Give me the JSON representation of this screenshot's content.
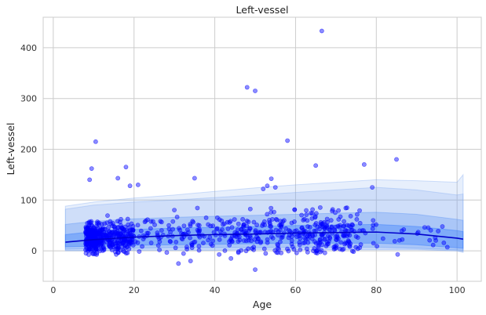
{
  "chart_data": {
    "type": "scatter",
    "title": "Left-vessel",
    "xlabel": "Age",
    "ylabel": "Left-vessel",
    "xlim": [
      -2.5,
      106
    ],
    "ylim": [
      -60,
      460
    ],
    "xticks": [
      0,
      20,
      40,
      60,
      80,
      100
    ],
    "yticks": [
      0,
      100,
      200,
      300,
      400
    ],
    "grid": true,
    "legend": "none",
    "colors": {
      "points": "#0000ff",
      "median_line": "#0000cc",
      "band_inner": "#1f6dff",
      "band_mid": "#4a8af5",
      "band_outer": "#7aa6f0",
      "grid": "#cccccc",
      "background": "#ffffff"
    },
    "percentile_curves": {
      "x": [
        3,
        10,
        20,
        30,
        40,
        50,
        60,
        70,
        80,
        90,
        100,
        101.5
      ],
      "p50": [
        17,
        22,
        27,
        30,
        32,
        33,
        35,
        36,
        37,
        33,
        25,
        23
      ],
      "p25_p75": [
        [
          8,
          32
        ],
        [
          9,
          38
        ],
        [
          11,
          42
        ],
        [
          12,
          45
        ],
        [
          13,
          46
        ],
        [
          14,
          48
        ],
        [
          15,
          50
        ],
        [
          15,
          51
        ],
        [
          15,
          52
        ],
        [
          12,
          48
        ],
        [
          6,
          40
        ],
        [
          5,
          38
        ]
      ],
      "p10_p90": [
        [
          3,
          52
        ],
        [
          4,
          58
        ],
        [
          5,
          63
        ],
        [
          6,
          66
        ],
        [
          6,
          68
        ],
        [
          6,
          70
        ],
        [
          7,
          72
        ],
        [
          7,
          74
        ],
        [
          7,
          76
        ],
        [
          5,
          72
        ],
        [
          2,
          62
        ],
        [
          1,
          60
        ]
      ],
      "p05_p95": [
        [
          1,
          82
        ],
        [
          1,
          90
        ],
        [
          2,
          96
        ],
        [
          2,
          100
        ],
        [
          2,
          105
        ],
        [
          3,
          110
        ],
        [
          3,
          115
        ],
        [
          3,
          120
        ],
        [
          3,
          125
        ],
        [
          3,
          120
        ],
        [
          0,
          110
        ],
        [
          -2,
          112
        ]
      ],
      "p05_p95_outer": [
        [
          0,
          88
        ],
        [
          0,
          96
        ],
        [
          1,
          104
        ],
        [
          1,
          110
        ],
        [
          1,
          117
        ],
        [
          2,
          124
        ],
        [
          2,
          130
        ],
        [
          2,
          135
        ],
        [
          2,
          140
        ],
        [
          2,
          138
        ],
        [
          0,
          135
        ],
        [
          -3,
          150
        ]
      ]
    },
    "outliers": [
      {
        "x": 66.5,
        "y": 433
      },
      {
        "x": 48,
        "y": 322
      },
      {
        "x": 50,
        "y": 315
      },
      {
        "x": 58,
        "y": 217
      },
      {
        "x": 10.5,
        "y": 215
      },
      {
        "x": 85,
        "y": 180
      },
      {
        "x": 77,
        "y": 170
      },
      {
        "x": 65,
        "y": 168
      },
      {
        "x": 18,
        "y": 165
      },
      {
        "x": 9.5,
        "y": 162
      },
      {
        "x": 16,
        "y": 143
      },
      {
        "x": 35,
        "y": 143
      },
      {
        "x": 54,
        "y": 142
      },
      {
        "x": 9,
        "y": 140
      },
      {
        "x": 21,
        "y": 130
      },
      {
        "x": 19,
        "y": 128
      },
      {
        "x": 53,
        "y": 128
      },
      {
        "x": 79,
        "y": 125
      },
      {
        "x": 55,
        "y": 125
      },
      {
        "x": 52,
        "y": 122
      },
      {
        "x": 50,
        "y": -37
      },
      {
        "x": 34,
        "y": -20
      },
      {
        "x": 31,
        "y": -25
      },
      {
        "x": 44,
        "y": -15
      }
    ],
    "clusters": [
      {
        "x_range": [
          8,
          11
        ],
        "y_mean": 25,
        "y_sd": 14,
        "count": 230
      },
      {
        "x_range": [
          11,
          20
        ],
        "y_mean": 26,
        "y_sd": 15,
        "count": 240
      },
      {
        "x_range": [
          20,
          45
        ],
        "y_mean": 30,
        "y_sd": 20,
        "count": 130
      },
      {
        "x_range": [
          45,
          62
        ],
        "y_mean": 34,
        "y_sd": 22,
        "count": 150
      },
      {
        "x_range": [
          62,
          76
        ],
        "y_mean": 35,
        "y_sd": 22,
        "count": 170
      },
      {
        "x_range": [
          76,
          100
        ],
        "y_mean": 30,
        "y_sd": 18,
        "count": 30
      }
    ]
  }
}
